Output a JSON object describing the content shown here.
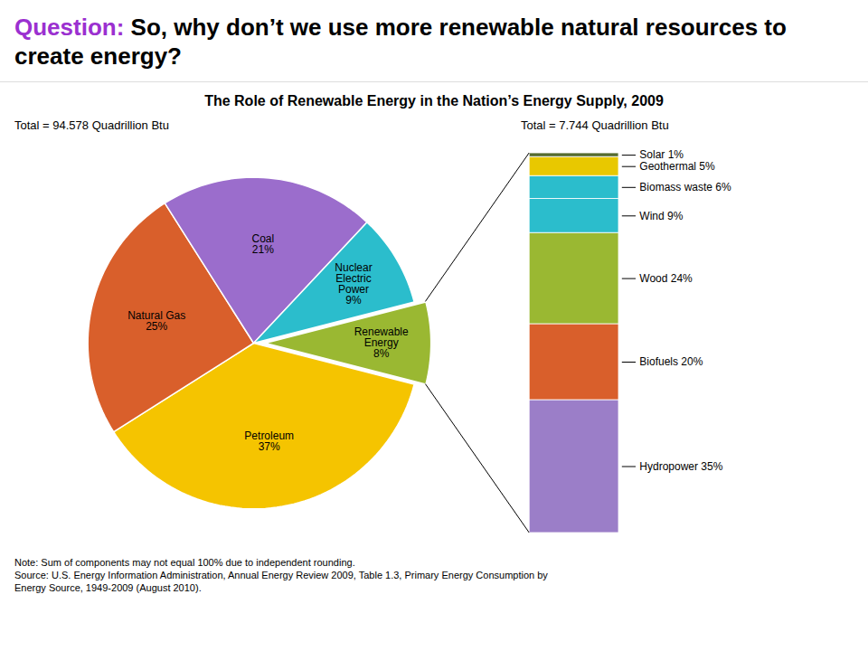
{
  "chart_data": [
    {
      "type": "pie",
      "title": "The Role of Renewable Energy in the Nation’s Energy Supply, 2009",
      "subtitle": "Total = 94.578 Quadrillion Btu",
      "categories": [
        "Petroleum",
        "Natural Gas",
        "Coal",
        "Nuclear Electric Power",
        "Renewable Energy"
      ],
      "values": [
        37,
        25,
        21,
        9,
        8
      ],
      "value_labels": [
        "37%",
        "25%",
        "21%",
        "9%",
        "8%"
      ],
      "colors": [
        "#f5c400",
        "#d95f2b",
        "#9b6dcc",
        "#2bbdcc",
        "#9ab832"
      ],
      "data_labels": true,
      "annotations": [
        {
          "text": "Question:",
          "color": "#9b30d0"
        },
        {
          "text": "So, why don’t we use more renewable natural resources to create energy?"
        },
        {
          "text": "Note: Sum of components may not equal 100% due to independent rounding."
        },
        {
          "text": "Source: U.S. Energy Information Administration, Annual Energy Review 2009, Table 1.3, Primary Energy Consumption by"
        },
        {
          "text": "Energy Source, 1949-2009 (August 2010)."
        }
      ]
    },
    {
      "type": "bar",
      "stacked": true,
      "subtitle": "Total = 7.744 Quadrillion Btu",
      "series": [
        {
          "name": "Hydropower",
          "color": "#9b7ec8",
          "values": [
            35
          ],
          "value_labels": [
            "35%"
          ]
        },
        {
          "name": "Biofuels",
          "color": "#d95f2b",
          "values": [
            20
          ],
          "value_labels": [
            "20%"
          ]
        },
        {
          "name": "Wood",
          "color": "#9ab832",
          "values": [
            24
          ],
          "value_labels": [
            "24%"
          ]
        },
        {
          "name": "Wind",
          "color": "#2bbdcc",
          "values": [
            9
          ],
          "value_labels": [
            "9%"
          ]
        },
        {
          "name": "Biomass waste",
          "color": "#2bbdcc",
          "values": [
            6
          ],
          "value_labels": [
            "6%"
          ]
        },
        {
          "name": "Geothermal",
          "color": "#e8c800",
          "values": [
            5
          ],
          "value_labels": [
            "5%"
          ]
        },
        {
          "name": "Solar",
          "color": "#556b2f",
          "values": [
            1
          ],
          "value_labels": [
            "1%"
          ]
        }
      ],
      "ylim": [
        0,
        100
      ],
      "data_labels": true,
      "tick_labels": false
    }
  ]
}
